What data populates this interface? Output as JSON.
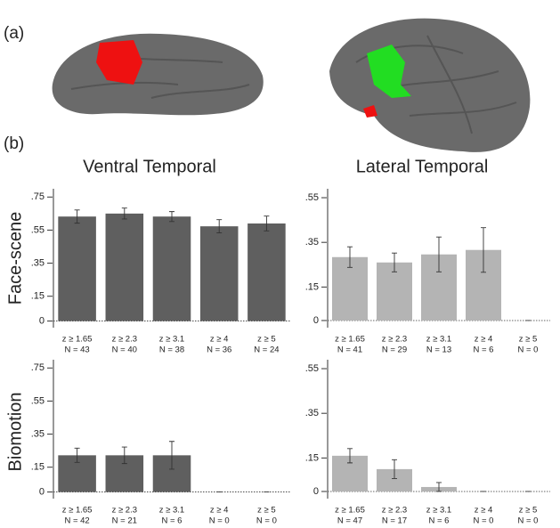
{
  "figure": {
    "panel_labels": [
      "(a)",
      "(b)"
    ],
    "column_titles": [
      "Ventral Temporal",
      "Lateral Temporal"
    ],
    "row_titles": [
      "Face-scene",
      "Biomotion"
    ]
  },
  "chart_data": [
    {
      "type": "bar",
      "color": "#5f5f5f",
      "categories": [
        "z ≥ 1.65",
        "z ≥ 2.3",
        "z ≥ 3.1",
        "z ≥ 4",
        "z ≥ 5"
      ],
      "n_labels": [
        "N = 43",
        "N = 40",
        "N = 38",
        "N = 36",
        "N = 24"
      ],
      "values": [
        0.632,
        0.65,
        0.632,
        0.573,
        0.59
      ],
      "errors": [
        0.04,
        0.033,
        0.03,
        0.04,
        0.045
      ],
      "ylim": [
        -0.04,
        0.8
      ],
      "yticks": [
        0,
        {
          "value": 0.15,
          "label": ".15"
        },
        {
          "value": 0.35,
          "label": ".35"
        },
        {
          "value": 0.55,
          "label": ".55"
        },
        {
          "value": 0.75,
          "label": ".75"
        }
      ]
    },
    {
      "type": "bar",
      "color": "#b4b4b4",
      "categories": [
        "z ≥ 1.65",
        "z ≥ 2.3",
        "z ≥ 3.1",
        "z ≥ 4",
        "z ≥ 5"
      ],
      "n_labels": [
        "N = 41",
        "N = 29",
        "N = 13",
        "N = 6",
        "N = 0"
      ],
      "values": [
        0.284,
        0.26,
        0.296,
        0.316,
        0
      ],
      "errors": [
        0.046,
        0.042,
        0.078,
        0.1,
        0
      ],
      "ylim": [
        -0.032,
        0.59
      ],
      "yticks": [
        0,
        {
          "value": 0.15,
          "label": ".15"
        },
        {
          "value": 0.35,
          "label": ".35"
        },
        {
          "value": 0.55,
          "label": ".55"
        }
      ]
    },
    {
      "type": "bar",
      "color": "#5f5f5f",
      "categories": [
        "z ≥ 1.65",
        "z ≥ 2.3",
        "z ≥ 3.1",
        "z ≥ 4",
        "z ≥ 5"
      ],
      "n_labels": [
        "N = 42",
        "N = 21",
        "N = 6",
        "N = 0",
        "N = 0"
      ],
      "values": [
        0.222,
        0.222,
        0.222,
        0,
        0
      ],
      "errors": [
        0.043,
        0.05,
        0.084,
        0,
        0
      ],
      "ylim": [
        -0.04,
        0.8
      ],
      "yticks": [
        0,
        {
          "value": 0.15,
          "label": ".15"
        },
        {
          "value": 0.35,
          "label": ".35"
        },
        {
          "value": 0.55,
          "label": ".55"
        },
        {
          "value": 0.75,
          "label": ".75"
        }
      ]
    },
    {
      "type": "bar",
      "color": "#b4b4b4",
      "categories": [
        "z ≥ 1.65",
        "z ≥ 2.3",
        "z ≥ 3.1",
        "z ≥ 4",
        "z ≥ 5"
      ],
      "n_labels": [
        "N = 47",
        "N = 17",
        "N = 6",
        "N = 0",
        "N = 0"
      ],
      "values": [
        0.16,
        0.1,
        0.02,
        0,
        0
      ],
      "errors": [
        0.032,
        0.042,
        0.02,
        0,
        0
      ],
      "ylim": [
        -0.032,
        0.59
      ],
      "yticks": [
        0,
        {
          "value": 0.15,
          "label": ".15"
        },
        {
          "value": 0.35,
          "label": ".35"
        },
        {
          "value": 0.55,
          "label": ".55"
        }
      ]
    }
  ]
}
